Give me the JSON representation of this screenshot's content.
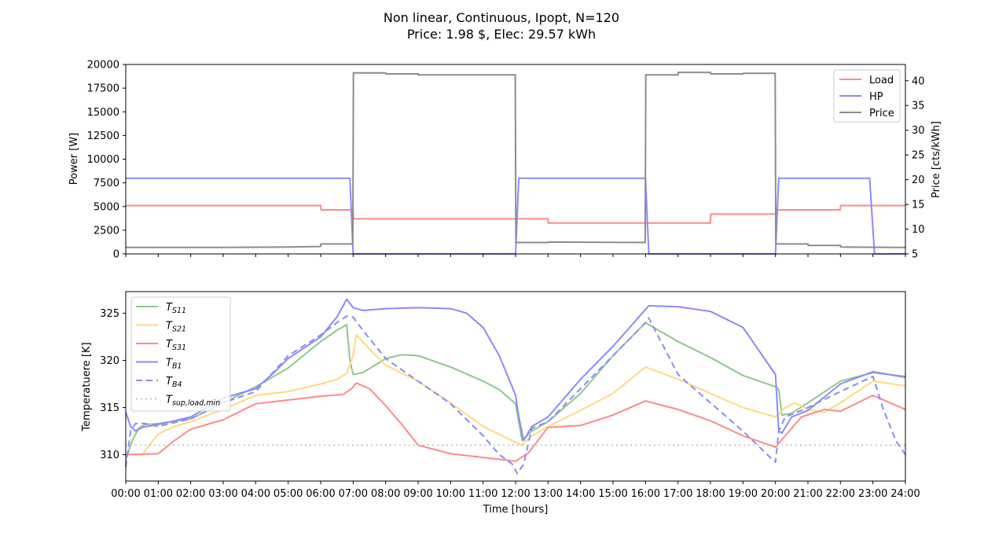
{
  "figure": {
    "title_line1": "Non linear, Continuous, Ipopt, N=120",
    "title_line2": "Price: 1.98 $, Elec: 29.57 kWh"
  },
  "chart_data": [
    {
      "type": "line",
      "xlabel": "",
      "ylabel": "Power [W]",
      "ylabel_right": "Price [cts/kWh]",
      "xlim": [
        0,
        24
      ],
      "ylim": [
        0,
        20000
      ],
      "ylim_right": [
        5,
        43.3
      ],
      "yticks": [
        0,
        2500,
        5000,
        7500,
        10000,
        12500,
        15000,
        17500,
        20000
      ],
      "yticks_right": [
        5,
        10,
        15,
        20,
        25,
        30,
        35,
        40
      ],
      "legend_position": "top-right",
      "grid": false,
      "series": [
        {
          "name": "Load",
          "axis": "left",
          "color": "#ff8a8a",
          "x": [
            0,
            6,
            6.01,
            7,
            7.01,
            12,
            12.01,
            13,
            13.01,
            16,
            16.01,
            17.99,
            18.01,
            19,
            19.01,
            20,
            20.01,
            21.99,
            22.01,
            24
          ],
          "y": [
            5100,
            5100,
            4650,
            4650,
            3700,
            3700,
            3700,
            3700,
            3250,
            3250,
            3250,
            3250,
            4200,
            4200,
            4200,
            4200,
            4650,
            4650,
            5100,
            5100
          ]
        },
        {
          "name": "HP",
          "axis": "left",
          "color": "#8a8aff",
          "x": [
            0,
            6.9,
            7.0,
            12.0,
            12.1,
            16.0,
            16.1,
            20.0,
            20.1,
            22.9,
            23.05,
            24
          ],
          "y": [
            7980,
            7980,
            0,
            0,
            7980,
            7980,
            0,
            0,
            7980,
            7980,
            0,
            0
          ]
        },
        {
          "name": "Price",
          "axis": "right",
          "color": "#8c8c8c",
          "x": [
            0,
            3,
            5,
            5.99,
            6.01,
            6.99,
            7.01,
            8,
            8.01,
            9,
            9.01,
            11.99,
            12.01,
            13,
            13.01,
            15.99,
            16.01,
            17,
            17.01,
            18,
            18.01,
            19,
            19.01,
            19.99,
            20.01,
            21,
            21.01,
            22,
            22.01,
            24
          ],
          "y": [
            6.3,
            6.3,
            6.4,
            6.5,
            7.0,
            7.0,
            41.6,
            41.6,
            41.4,
            41.4,
            41.2,
            41.2,
            7.3,
            7.3,
            7.4,
            7.3,
            41.2,
            41.2,
            41.7,
            41.7,
            41.4,
            41.4,
            41.5,
            41.5,
            7.0,
            7.0,
            6.7,
            6.7,
            6.4,
            6.3
          ]
        }
      ]
    },
    {
      "type": "line",
      "xlabel": "Time [hours]",
      "ylabel": "Temperatuere [K]",
      "xlim": [
        0,
        24
      ],
      "ylim": [
        307.2,
        327.3
      ],
      "yticks": [
        310,
        315,
        320,
        325
      ],
      "xticks": [
        "00:00",
        "01:00",
        "02:00",
        "03:00",
        "04:00",
        "05:00",
        "06:00",
        "07:00",
        "08:00",
        "09:00",
        "10:00",
        "11:00",
        "12:00",
        "13:00",
        "14:00",
        "15:00",
        "16:00",
        "17:00",
        "18:00",
        "19:00",
        "20:00",
        "21:00",
        "22:00",
        "23:00",
        "24:00"
      ],
      "legend_position": "top-left",
      "grid": false,
      "series": [
        {
          "name": "T",
          "sub": "S11",
          "color": "#8cc98c",
          "dash": "",
          "x": [
            0,
            0.2,
            0.4,
            0.6,
            1,
            2,
            3,
            4,
            5,
            6,
            6.5,
            6.8,
            6.9,
            7.0,
            7.3,
            8.0,
            8.5,
            9,
            10,
            11,
            11.5,
            12,
            12.2,
            12.5,
            13,
            14,
            15,
            16,
            17,
            18,
            19,
            20,
            20.1,
            20.2,
            20.5,
            21,
            22,
            23,
            24
          ],
          "y": [
            309.5,
            311.5,
            312.8,
            313.2,
            313.3,
            313.8,
            315.5,
            317.2,
            319.2,
            322.0,
            323.2,
            323.8,
            320.0,
            318.5,
            318.7,
            320.2,
            320.6,
            320.5,
            319.3,
            317.8,
            316.9,
            315.4,
            311.5,
            312.5,
            313.5,
            316.5,
            320.5,
            324.0,
            322.0,
            320.3,
            318.4,
            317.2,
            316.9,
            314.2,
            314.4,
            315.5,
            317.8,
            318.7,
            318.3
          ]
        },
        {
          "name": "T",
          "sub": "S21",
          "color": "#ffd980",
          "dash": "",
          "x": [
            0,
            0.5,
            1,
            1.5,
            2,
            3,
            4,
            5,
            6,
            6.5,
            6.8,
            7.0,
            7.1,
            7.5,
            8,
            9,
            10,
            11,
            12,
            12.2,
            12.5,
            13,
            14,
            15,
            16,
            17,
            18,
            19,
            20,
            20.3,
            20.6,
            21,
            21.5,
            22,
            23,
            24
          ],
          "y": [
            310.0,
            310.0,
            312.2,
            313.0,
            313.5,
            314.8,
            316.3,
            316.7,
            317.5,
            318.0,
            318.6,
            320.5,
            322.7,
            321.2,
            319.5,
            317.8,
            315.5,
            313.0,
            311.3,
            311.0,
            312.0,
            313.0,
            314.7,
            316.5,
            319.3,
            318.0,
            316.5,
            315.0,
            314.0,
            315.0,
            315.5,
            314.8,
            314.5,
            315.5,
            317.8,
            317.3
          ]
        },
        {
          "name": "T",
          "sub": "S31",
          "color": "#ff8a8a",
          "dash": "",
          "x": [
            0,
            1,
            1.5,
            2,
            3,
            4,
            5,
            6,
            6.7,
            6.95,
            7.1,
            7.5,
            8,
            8.5,
            9,
            10,
            11,
            12,
            12.4,
            12.8,
            13,
            14,
            15,
            16,
            17,
            18,
            19,
            20,
            20.3,
            20.8,
            21.5,
            22,
            23,
            24
          ],
          "y": [
            310.0,
            310.1,
            311.5,
            312.7,
            313.7,
            315.4,
            315.8,
            316.2,
            316.4,
            317.0,
            317.6,
            317.0,
            315.2,
            313.2,
            311.0,
            310.1,
            309.7,
            309.3,
            310.2,
            312.0,
            312.9,
            313.1,
            314.2,
            315.7,
            314.8,
            313.6,
            312.0,
            310.8,
            312.0,
            314.0,
            314.8,
            314.6,
            316.3,
            314.8
          ]
        },
        {
          "name": "T",
          "sub": "B1",
          "color": "#8a8aff",
          "dash": "",
          "x": [
            0,
            0.15,
            0.3,
            0.5,
            1,
            2,
            3,
            4,
            4.5,
            5,
            6,
            6.5,
            6.8,
            7.0,
            7.3,
            8,
            9,
            10,
            10.5,
            11,
            11.5,
            12,
            12.1,
            12.25,
            12.5,
            13,
            14,
            15,
            16,
            16.1,
            17,
            18,
            19,
            19.8,
            20,
            20.1,
            20.2,
            20.5,
            21,
            22,
            23,
            24
          ],
          "y": [
            314.5,
            313.0,
            312.5,
            312.9,
            313.2,
            314.0,
            316.0,
            317.0,
            318.5,
            320.2,
            322.5,
            324.6,
            326.5,
            325.6,
            325.3,
            325.5,
            325.6,
            325.5,
            325.0,
            323.5,
            320.5,
            316.3,
            314.0,
            311.5,
            313.0,
            314.0,
            318.0,
            321.5,
            325.4,
            325.8,
            325.7,
            325.2,
            323.5,
            319.5,
            318.5,
            312.5,
            312.3,
            314.0,
            314.7,
            317.5,
            318.8,
            318.2
          ]
        },
        {
          "name": "T",
          "sub": "B4",
          "color": "#8a8aff",
          "dash": "8,5",
          "x": [
            0,
            0.15,
            0.3,
            0.6,
            1,
            2,
            3,
            4,
            5,
            6,
            6.5,
            6.8,
            7.0,
            7.3,
            8,
            9,
            10,
            11,
            11.5,
            11.9,
            12.05,
            12.25,
            12.5,
            13,
            14,
            15,
            16,
            16.1,
            17,
            18,
            19,
            19.9,
            20.0,
            20.1,
            20.3,
            20.6,
            21,
            22,
            23,
            23.3,
            23.7,
            24
          ],
          "y": [
            308.7,
            312.5,
            313.3,
            313.3,
            313.0,
            313.8,
            315.5,
            316.7,
            320.5,
            322.7,
            324.0,
            324.7,
            324.6,
            323.2,
            320.2,
            317.8,
            315.4,
            312.0,
            310.0,
            309.0,
            308.0,
            309.0,
            312.8,
            313.5,
            317.0,
            320.5,
            324.0,
            324.5,
            318.5,
            315.5,
            312.5,
            309.5,
            309.2,
            312.5,
            314.0,
            314.4,
            315.0,
            316.7,
            318.3,
            315.0,
            311.5,
            310.0
          ]
        },
        {
          "name": "T",
          "sub": "sup,load,min",
          "color": "#bdbdbd",
          "dash": "2,4",
          "x": [
            0,
            24
          ],
          "y": [
            311.0,
            311.0
          ]
        }
      ]
    }
  ]
}
